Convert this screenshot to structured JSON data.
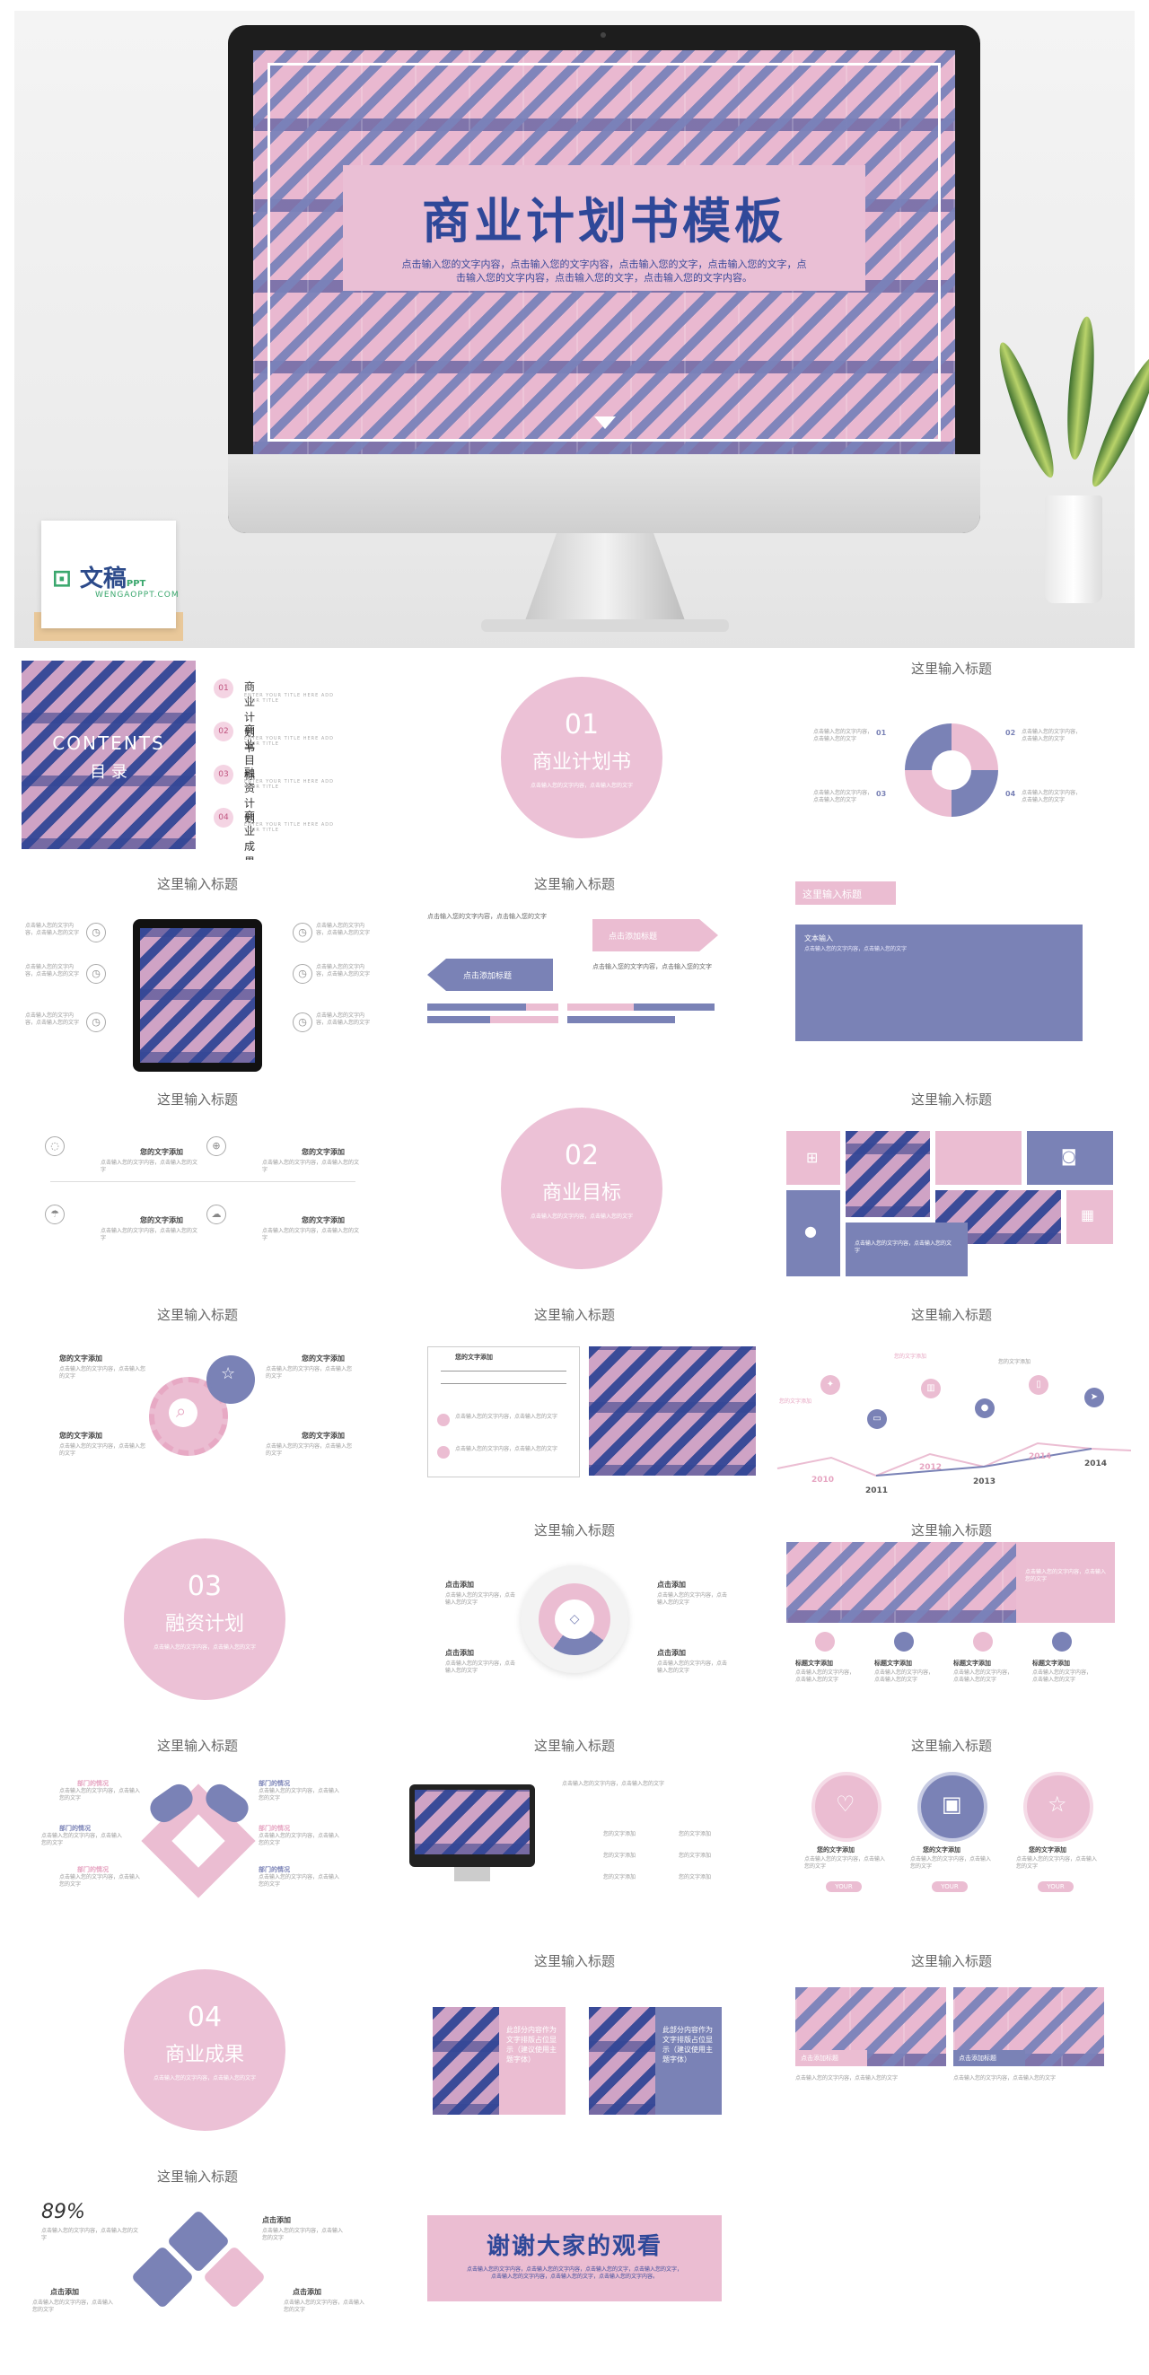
{
  "hero": {
    "title": "商业计划书模板",
    "subtitle": "点击输入您的文字内容，点击输入您的文字内容，点击输入您的文字，点击输入您的文字，点击输入您的文字内容，点击输入您的文字，点击输入您的文字内容。",
    "logo_text": "文稿",
    "logo_suffix": "PPT",
    "logo_sub": "WENGAOPPT.COM"
  },
  "common": {
    "slide_title": "这里输入标题",
    "your_text": "您的文字添加",
    "click_add": "点击添加",
    "title_text": "标题文字添加",
    "dept": "部门的情况",
    "placeholder": "点击输入您的文字内容，点击输入您的文字"
  },
  "contents": {
    "title_en": "CONTENTS",
    "title_cn": "目 录",
    "items": [
      {
        "num": "01",
        "label": "商业计划书",
        "sub": "ENTER YOUR TITLE HERE ADD YOUR TITLE"
      },
      {
        "num": "02",
        "label": "商业目标",
        "sub": "ENTER YOUR TITLE HERE ADD YOUR TITLE"
      },
      {
        "num": "03",
        "label": "融资计划",
        "sub": "ENTER YOUR TITLE HERE ADD YOUR TITLE"
      },
      {
        "num": "04",
        "label": "商业成果",
        "sub": "ENTER YOUR TITLE HERE ADD YOUR TITLE"
      }
    ]
  },
  "sections": [
    {
      "num": "01",
      "title": "商业计划书"
    },
    {
      "num": "02",
      "title": "商业目标"
    },
    {
      "num": "03",
      "title": "融资计划"
    },
    {
      "num": "04",
      "title": "商业成果"
    }
  ],
  "nums": [
    "01",
    "02",
    "03",
    "04"
  ],
  "timeline": {
    "years": [
      "2010",
      "2011",
      "2012",
      "2013",
      "2014",
      "2014"
    ]
  },
  "slide_misc": {
    "click_title": "点击添加标题",
    "text_box": "文本输入",
    "percent": "89%",
    "thanks": "谢谢大家的观看",
    "replace_text": "此部分内容作为文字排版占位显示（建议使用主题字体）",
    "tag": "YOUR"
  }
}
